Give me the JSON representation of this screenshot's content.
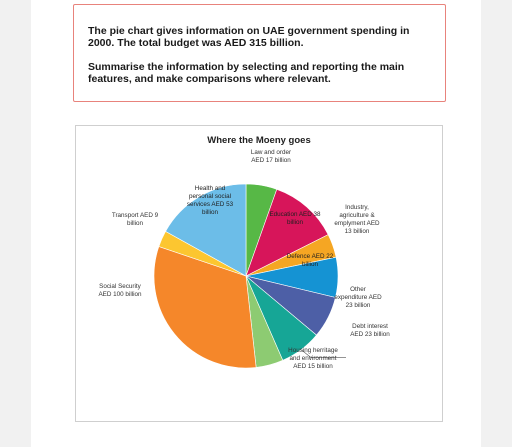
{
  "task": {
    "line1": "The pie chart gives information on UAE government spending in 2000. The total budget was AED 315 billion.",
    "line2": "Summarise the information by selecting and reporting the main features, and make comparisons where relevant."
  },
  "chart_data": {
    "type": "pie",
    "title": "Where the Moeny goes",
    "unit": "AED billion",
    "slices": [
      {
        "name": "Law and order",
        "value": 17,
        "color": "#57b846",
        "label": [
          "Law and order",
          "AED 17 billion"
        ]
      },
      {
        "name": "Education",
        "value": 38,
        "color": "#d7155a",
        "label": [
          "Education AED 38",
          "billion"
        ]
      },
      {
        "name": "Industry, agriculture & emplyment",
        "value": 13,
        "color": "#f5a623",
        "label": [
          "Industry,",
          "agriculture &",
          "emplyment AED",
          "13 billion"
        ]
      },
      {
        "name": "Defence",
        "value": 22,
        "color": "#1593d3",
        "label": [
          "Defence AED 22",
          "billion"
        ]
      },
      {
        "name": "Other expenditure",
        "value": 23,
        "color": "#4d5fa6",
        "label": [
          "Other",
          "expenditure AED",
          "23 billion"
        ]
      },
      {
        "name": "Debt interest",
        "value": 23,
        "color": "#16a696",
        "label": [
          "Debt interest",
          "AED 23 billion"
        ]
      },
      {
        "name": "Housing herritage and environment",
        "value": 15,
        "color": "#8dcb72",
        "label": [
          "Housing herritage",
          "and environment",
          "AED 15 billion"
        ]
      },
      {
        "name": "Social Security",
        "value": 100,
        "color": "#f5872a",
        "label": [
          "Social Security",
          "AED 100 billion"
        ]
      },
      {
        "name": "Transport",
        "value": 9,
        "color": "#fcc630",
        "label": [
          "Transport AED 9",
          "billion"
        ]
      },
      {
        "name": "Health and personal social services",
        "value": 53,
        "color": "#6cbde8",
        "label": [
          "Health and",
          "personal social",
          "services AED 53",
          "billion"
        ]
      }
    ]
  }
}
